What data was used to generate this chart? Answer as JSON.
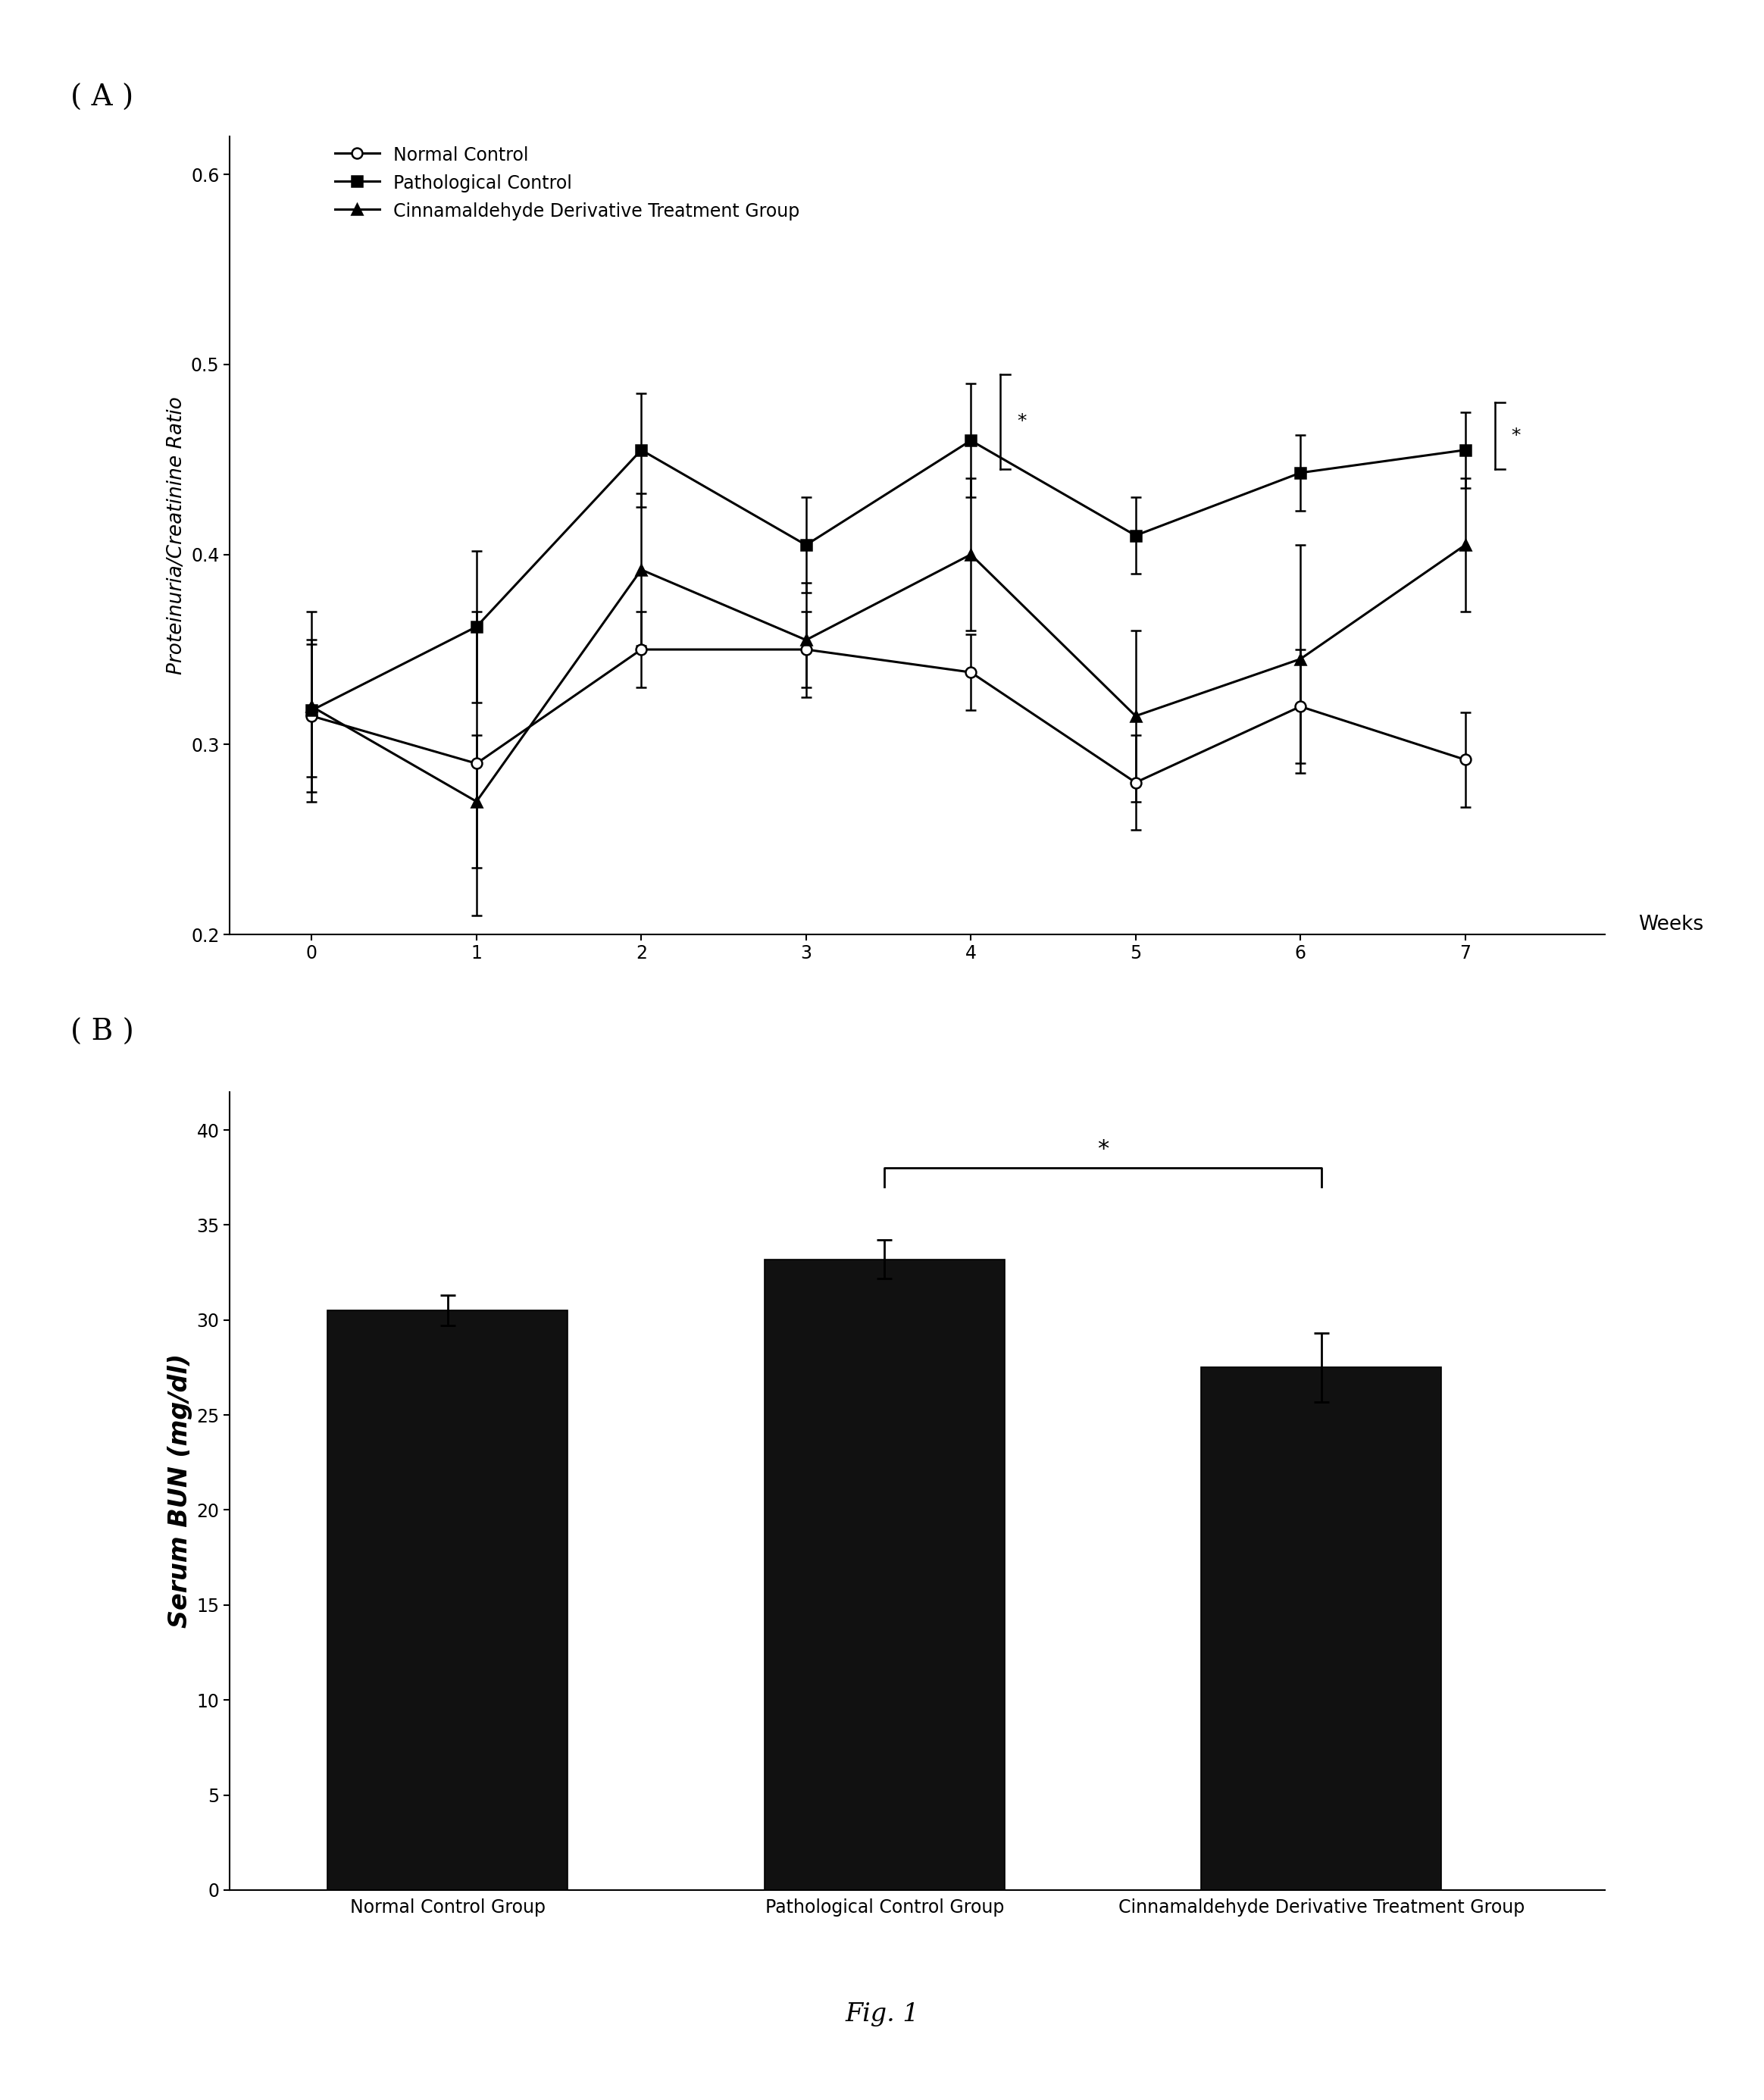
{
  "panel_A": {
    "title_label": "( A )",
    "weeks": [
      0,
      1,
      2,
      3,
      4,
      5,
      6,
      7
    ],
    "normal_control": [
      0.315,
      0.29,
      0.35,
      0.35,
      0.338,
      0.28,
      0.32,
      0.292
    ],
    "normal_control_err": [
      0.04,
      0.08,
      0.02,
      0.02,
      0.02,
      0.025,
      0.03,
      0.025
    ],
    "pathological_control": [
      0.318,
      0.362,
      0.455,
      0.405,
      0.46,
      0.41,
      0.443,
      0.455
    ],
    "pathological_control_err": [
      0.035,
      0.04,
      0.03,
      0.025,
      0.03,
      0.02,
      0.02,
      0.02
    ],
    "treatment_group": [
      0.32,
      0.27,
      0.392,
      0.355,
      0.4,
      0.315,
      0.345,
      0.405
    ],
    "treatment_group_err": [
      0.05,
      0.035,
      0.04,
      0.03,
      0.04,
      0.045,
      0.06,
      0.035
    ],
    "ylabel": "Proteinuria/Creatinine Ratio",
    "xlabel": "Weeks",
    "ylim": [
      0.2,
      0.62
    ],
    "yticks": [
      0.2,
      0.3,
      0.4,
      0.5,
      0.6
    ],
    "legend_labels": [
      "Normal Control",
      "Pathological Control",
      "Cinnamaldehyde Derivative Treatment Group"
    ]
  },
  "panel_B": {
    "title_label": "( B )",
    "categories": [
      "Normal Control Group",
      "Pathological Control Group",
      "Cinnamaldehyde Derivative Treatment Group"
    ],
    "values": [
      30.5,
      33.2,
      27.5
    ],
    "errors": [
      0.8,
      1.0,
      1.8
    ],
    "bar_color": "#111111",
    "ylabel": "Serum BUN (mg/dl)",
    "ylim": [
      0,
      42
    ],
    "yticks": [
      0,
      5,
      10,
      15,
      20,
      25,
      30,
      35,
      40
    ]
  },
  "fig_label": "Fig. 1",
  "background_color": "#ffffff",
  "text_color": "#000000"
}
